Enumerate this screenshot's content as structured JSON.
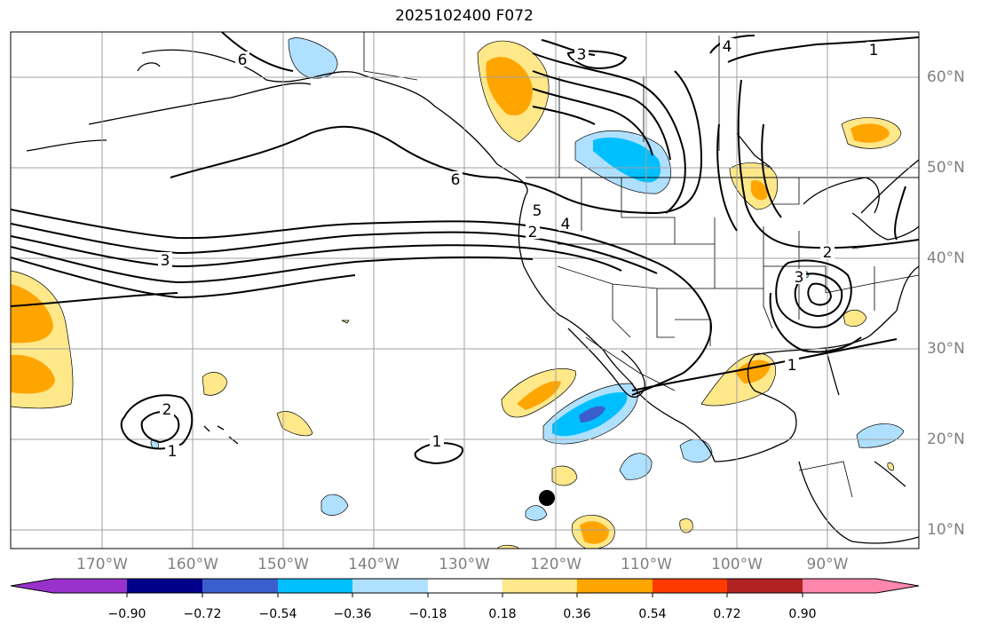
{
  "title": "2025102400 F072",
  "lat_labels": [
    "60°N",
    "50°N",
    "40°N",
    "30°N",
    "20°N",
    "10°N"
  ],
  "lon_labels": [
    "170°W",
    "160°W",
    "150°W",
    "140°W",
    "130°W",
    "120°W",
    "110°W",
    "100°W",
    "90°W"
  ],
  "colorbar": {
    "tick_labels": [
      "−0.90",
      "−0.72",
      "−0.54",
      "−0.36",
      "−0.18",
      "0.18",
      "0.36",
      "0.54",
      "0.72",
      "0.90"
    ],
    "colors": [
      "#9932cc",
      "#00008b",
      "#3a5fcd",
      "#00bfff",
      "#afe0ff",
      "#ffffff",
      "#ffe88a",
      "#ffa500",
      "#ff3a00",
      "#b22222",
      "#ff86ad"
    ]
  },
  "contour_labels": {
    "c6_alaska": "6",
    "c6_pacific": "6",
    "c5_coast": "5",
    "c4_coast": "4",
    "c2_coast": "2",
    "c3_pacific": "3",
    "c3_north": "3",
    "c4_north": "4",
    "c1_northeast": "1",
    "c3_east": "3",
    "c2_east": "2",
    "c1_gulf": "1",
    "c2_hawaii": "2",
    "c1_hawaii": "1",
    "c1_pacific": "1"
  }
}
